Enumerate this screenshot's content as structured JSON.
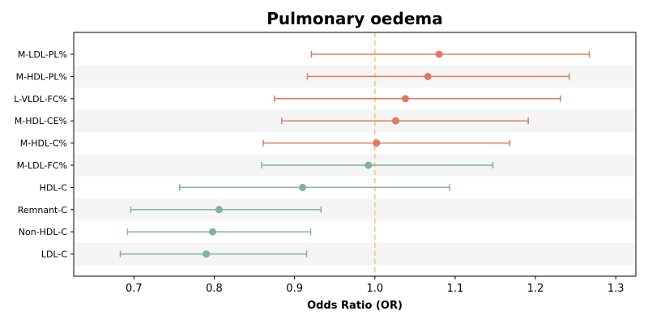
{
  "chart_data": {
    "type": "scatter",
    "title": "Pulmonary oedema",
    "xlabel": "Odds Ratio (OR)",
    "ylabel": "",
    "xlim": [
      0.625,
      1.325
    ],
    "xticks": [
      "0.7",
      "0.8",
      "0.9",
      "1.0",
      "1.1",
      "1.2",
      "1.3"
    ],
    "reference_line": {
      "x": 1.0,
      "style": "dashed",
      "color": "#f5c77e"
    },
    "grid": false,
    "row_banding": true,
    "colors": {
      "above": "#e07a5f",
      "below": "#81b29a",
      "band": "#f5f5f5"
    },
    "rows": [
      {
        "label": "M-LDL-PL%",
        "or": 1.08,
        "lower": 0.921,
        "upper": 1.267,
        "group": "above"
      },
      {
        "label": "M-HDL-PL%",
        "or": 1.066,
        "lower": 0.916,
        "upper": 1.242,
        "group": "above"
      },
      {
        "label": "L-VLDL-FC%",
        "or": 1.038,
        "lower": 0.875,
        "upper": 1.231,
        "group": "above"
      },
      {
        "label": "M-HDL-CE%",
        "or": 1.026,
        "lower": 0.884,
        "upper": 1.191,
        "group": "above"
      },
      {
        "label": "M-HDL-C%",
        "or": 1.002,
        "lower": 0.861,
        "upper": 1.168,
        "group": "above"
      },
      {
        "label": "M-LDL-FC%",
        "or": 0.992,
        "lower": 0.859,
        "upper": 1.147,
        "group": "below"
      },
      {
        "label": "HDL-C",
        "or": 0.91,
        "lower": 0.757,
        "upper": 1.093,
        "group": "below"
      },
      {
        "label": "Remnant-C",
        "or": 0.806,
        "lower": 0.696,
        "upper": 0.933,
        "group": "below"
      },
      {
        "label": "Non-HDL-C",
        "or": 0.798,
        "lower": 0.692,
        "upper": 0.92,
        "group": "below"
      },
      {
        "label": "LDL-C",
        "or": 0.79,
        "lower": 0.683,
        "upper": 0.915,
        "group": "below"
      }
    ]
  }
}
